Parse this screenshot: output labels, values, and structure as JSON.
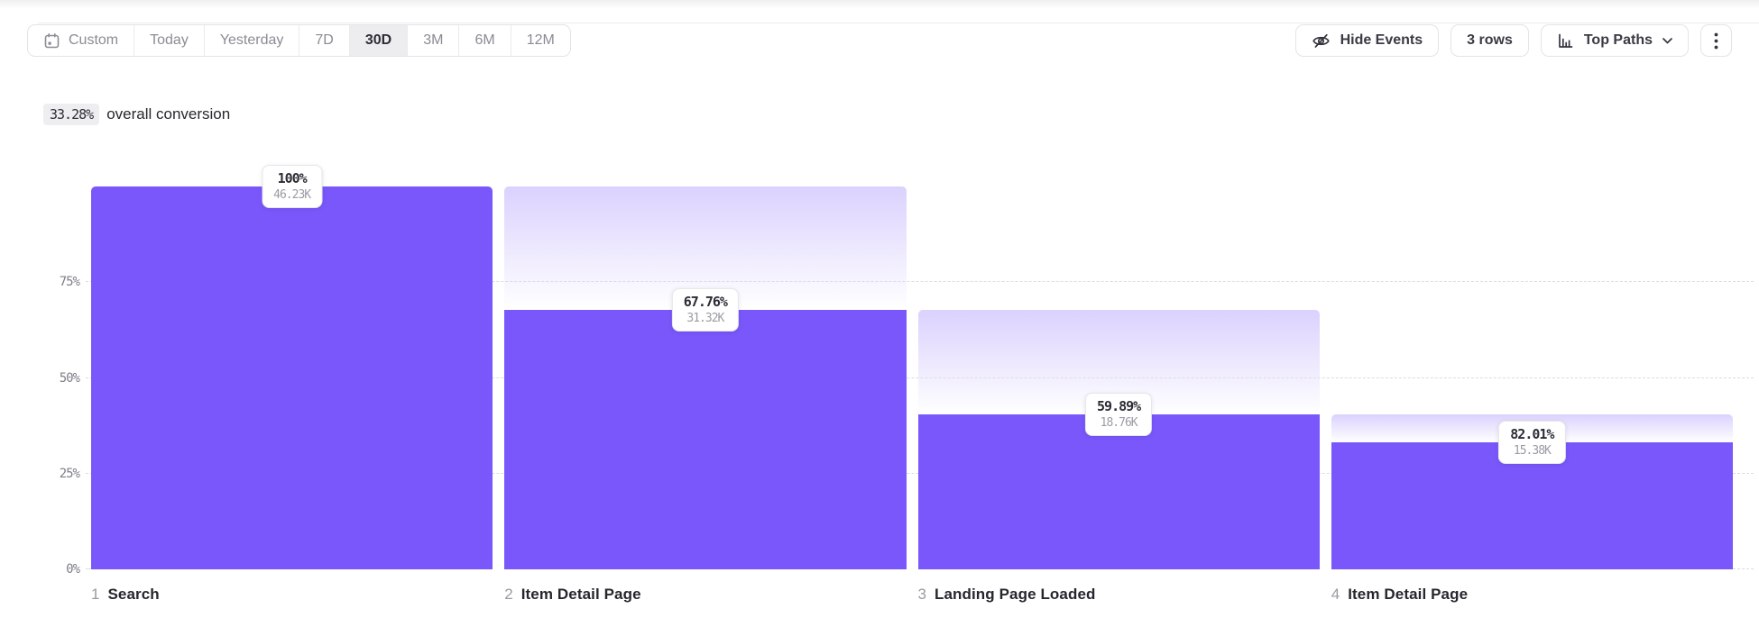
{
  "toolbar": {
    "date_ranges": [
      {
        "label": "Custom",
        "icon": "calendar",
        "selected": false
      },
      {
        "label": "Today",
        "selected": false
      },
      {
        "label": "Yesterday",
        "selected": false
      },
      {
        "label": "7D",
        "selected": false
      },
      {
        "label": "30D",
        "selected": true
      },
      {
        "label": "3M",
        "selected": false
      },
      {
        "label": "6M",
        "selected": false
      },
      {
        "label": "12M",
        "selected": false
      }
    ],
    "hide_events_label": "Hide Events",
    "rows_label": "3 rows",
    "view_mode_label": "Top Paths"
  },
  "summary": {
    "value": "33.28%",
    "text": "overall conversion"
  },
  "chart_data": {
    "type": "bar",
    "subtype": "funnel",
    "title": "33.28% overall conversion",
    "xlabel": "",
    "ylabel": "",
    "ylim": [
      0,
      100
    ],
    "yticks": [
      {
        "label": "0%",
        "value": 0
      },
      {
        "label": "25%",
        "value": 25
      },
      {
        "label": "50%",
        "value": 50
      },
      {
        "label": "75%",
        "value": 75
      }
    ],
    "grid": "horizontal-dashed",
    "bar_color": "#7957FB",
    "steps": [
      {
        "index": "1",
        "name": "Search",
        "conversion_label": "100%",
        "count_label": "46.23K",
        "pct_of_previous": 100,
        "pct_of_total": 100
      },
      {
        "index": "2",
        "name": "Item Detail Page",
        "conversion_label": "67.76%",
        "count_label": "31.32K",
        "pct_of_previous": 67.76,
        "pct_of_total": 67.75
      },
      {
        "index": "3",
        "name": "Landing Page Loaded",
        "conversion_label": "59.89%",
        "count_label": "18.76K",
        "pct_of_previous": 59.89,
        "pct_of_total": 40.58
      },
      {
        "index": "4",
        "name": "Item Detail Page",
        "conversion_label": "82.01%",
        "count_label": "15.38K",
        "pct_of_previous": 82.01,
        "pct_of_total": 33.27
      }
    ]
  }
}
